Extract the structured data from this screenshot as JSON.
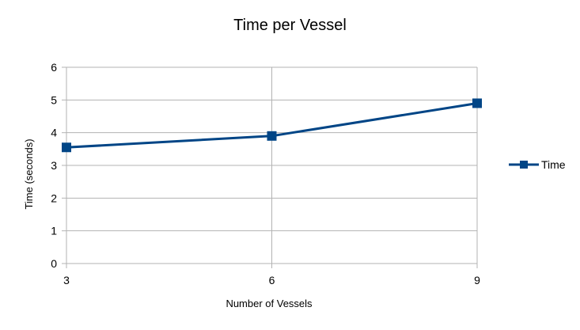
{
  "chart_data": {
    "type": "line",
    "title": "Time per Vessel",
    "xlabel": "Number of Vessels",
    "ylabel": "Time (seconds)",
    "x": [
      3,
      6,
      9
    ],
    "x_ticks": [
      "3",
      "6",
      "9"
    ],
    "y_ticks": [
      "0",
      "1",
      "2",
      "3",
      "4",
      "5",
      "6"
    ],
    "ylim": [
      0,
      6
    ],
    "grid": true,
    "legend": "right",
    "series": [
      {
        "name": "Time",
        "values": [
          3.55,
          3.9,
          4.9
        ],
        "color": "#004586",
        "marker": "square"
      }
    ]
  }
}
